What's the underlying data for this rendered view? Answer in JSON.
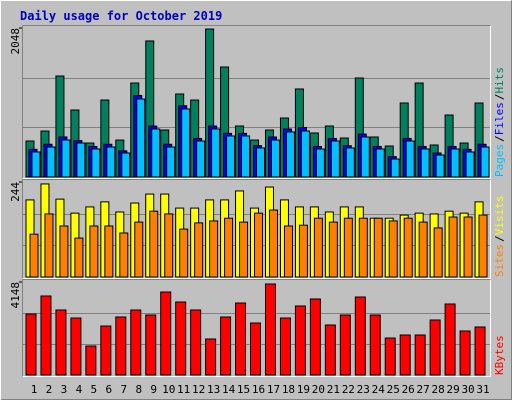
{
  "chart_data": [
    {
      "type": "bar",
      "title": "Daily usage for October 2019",
      "legend_separator": "/",
      "ylim": [
        0,
        2048
      ],
      "yticks": [
        2048
      ],
      "series": [
        {
          "name": "Hits",
          "color": "#00805c",
          "values": [
            495,
            632,
            1388,
            921,
            467,
            1058,
            508,
            1292,
            1870,
            646,
            1141,
            1058,
            2034,
            1512,
            701,
            508,
            646,
            811,
            1210,
            605,
            701,
            536,
            1361,
            550,
            426,
            1017,
            1292,
            440,
            852,
            467,
            1017
          ]
        },
        {
          "name": "Files",
          "color": "#0000ff",
          "values": [
            380,
            450,
            550,
            500,
            420,
            450,
            360,
            1120,
            700,
            450,
            980,
            530,
            700,
            600,
            600,
            430,
            550,
            660,
            680,
            420,
            530,
            430,
            590,
            420,
            280,
            530,
            420,
            330,
            420,
            380,
            450
          ]
        },
        {
          "name": "Pages",
          "color": "#00c0ff",
          "values": [
            344,
            412,
            508,
            467,
            385,
            412,
            330,
            1072,
            660,
            412,
            935,
            495,
            660,
            564,
            564,
            399,
            508,
            619,
            632,
            385,
            495,
            399,
            550,
            385,
            247,
            495,
            385,
            302,
            385,
            344,
            412
          ]
        }
      ]
    },
    {
      "type": "bar",
      "ylim": [
        0,
        244
      ],
      "yticks": [
        244
      ],
      "series": [
        {
          "name": "Visits",
          "color": "#ffff00",
          "values": [
            198,
            239,
            200,
            164,
            180,
            193,
            167,
            190,
            213,
            213,
            177,
            177,
            198,
            198,
            221,
            177,
            231,
            198,
            180,
            180,
            167,
            180,
            180,
            151,
            151,
            159,
            164,
            162,
            169,
            164,
            193
          ]
        },
        {
          "name": "Sites",
          "color": "#ff8000",
          "values": [
            110,
            162,
            131,
            100,
            131,
            131,
            113,
            141,
            169,
            162,
            123,
            139,
            144,
            151,
            141,
            164,
            172,
            131,
            133,
            151,
            141,
            151,
            151,
            151,
            144,
            151,
            141,
            126,
            154,
            154,
            159
          ]
        }
      ]
    },
    {
      "type": "bar",
      "ylim": [
        0,
        4148
      ],
      "yticks": [
        4148
      ],
      "categories": [
        "1",
        "2",
        "3",
        "4",
        "5",
        "6",
        "7",
        "8",
        "9",
        "10",
        "11",
        "12",
        "13",
        "14",
        "15",
        "16",
        "17",
        "18",
        "19",
        "20",
        "21",
        "22",
        "23",
        "24",
        "25",
        "26",
        "27",
        "28",
        "29",
        "30",
        "31"
      ],
      "series": [
        {
          "name": "KBytes",
          "color": "#ff0000",
          "values": [
            2721,
            3524,
            2899,
            2542,
            1293,
            2185,
            2587,
            2899,
            2676,
            3702,
            3256,
            2899,
            1606,
            2587,
            3211,
            2319,
            4059,
            2542,
            3078,
            3390,
            2230,
            2676,
            3479,
            2676,
            1650,
            1784,
            1784,
            2453,
            3167,
            1963,
            2141
          ]
        }
      ]
    }
  ]
}
